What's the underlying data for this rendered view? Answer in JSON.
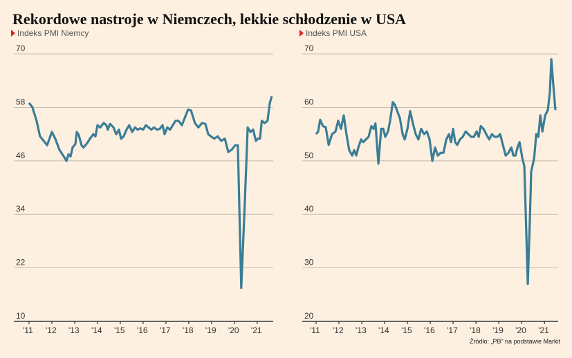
{
  "title": "Rekordowe nastroje w Niemczech, lekkie schłodzenie w USA",
  "source": "Źródło: „PB” na podstawie Markit",
  "chart_data": [
    {
      "type": "line",
      "subtitle": "Indeks PMI Niemcy",
      "color": "#3b7d96",
      "xlim": [
        2011,
        2021.7
      ],
      "ylim": [
        10,
        70
      ],
      "yticks": [
        10,
        22,
        34,
        46,
        58,
        70
      ],
      "grid": true,
      "xticks": [
        {
          "value": 2011,
          "label": "'11"
        },
        {
          "value": 2012,
          "label": "'12"
        },
        {
          "value": 2013,
          "label": "'13"
        },
        {
          "value": 2014,
          "label": "'14"
        },
        {
          "value": 2015,
          "label": "'15"
        },
        {
          "value": 2016,
          "label": "'16"
        },
        {
          "value": 2017,
          "label": "'17"
        },
        {
          "value": 2018,
          "label": "'18"
        },
        {
          "value": 2019,
          "label": "'19"
        },
        {
          "value": 2020,
          "label": "'20"
        },
        {
          "value": 2021,
          "label": "'21"
        }
      ],
      "x": [
        2011.0,
        2011.15,
        2011.33,
        2011.48,
        2011.64,
        2011.79,
        2012.0,
        2012.15,
        2012.33,
        2012.52,
        2012.64,
        2012.73,
        2012.82,
        2012.91,
        2013.03,
        2013.09,
        2013.18,
        2013.3,
        2013.39,
        2013.55,
        2013.67,
        2013.82,
        2013.91,
        2014.0,
        2014.12,
        2014.27,
        2014.39,
        2014.45,
        2014.55,
        2014.7,
        2014.82,
        2014.94,
        2015.03,
        2015.15,
        2015.27,
        2015.39,
        2015.52,
        2015.64,
        2015.76,
        2015.88,
        2016.0,
        2016.12,
        2016.24,
        2016.36,
        2016.48,
        2016.61,
        2016.73,
        2016.85,
        2016.94,
        2017.06,
        2017.18,
        2017.3,
        2017.42,
        2017.55,
        2017.7,
        2017.85,
        2017.97,
        2018.1,
        2018.27,
        2018.42,
        2018.58,
        2018.73,
        2018.85,
        2018.97,
        2019.12,
        2019.27,
        2019.42,
        2019.58,
        2019.73,
        2019.88,
        2020.03,
        2020.15,
        2020.3,
        2020.45,
        2020.58,
        2020.7,
        2020.82,
        2020.94,
        2021.03,
        2021.12,
        2021.2,
        2021.33,
        2021.45,
        2021.55,
        2021.64
      ],
      "values": [
        59,
        58,
        55,
        51.5,
        50.5,
        49.5,
        52.5,
        51,
        48.5,
        47,
        46,
        47.5,
        47,
        49,
        49.8,
        52.5,
        51.8,
        49.5,
        49,
        50,
        51,
        52,
        51.5,
        54,
        53.5,
        54.5,
        54,
        53,
        54.3,
        53.5,
        52,
        53,
        51,
        51.5,
        53,
        54,
        52.5,
        53.5,
        53,
        53.3,
        53,
        54,
        53.5,
        53,
        53.5,
        53,
        53.2,
        54,
        52,
        53.5,
        53,
        54,
        55,
        55,
        54,
        56,
        57.5,
        57.3,
        54.5,
        53.5,
        54.5,
        54.3,
        52,
        51.5,
        51,
        51.5,
        50.5,
        51,
        48,
        48.5,
        49.5,
        49.5,
        17.5,
        36,
        53.5,
        52.5,
        53,
        50.5,
        51,
        51,
        55,
        54.5,
        55,
        59,
        60.5
      ]
    },
    {
      "type": "line",
      "subtitle": "Indeks PMI USA",
      "color": "#3b7d96",
      "xlim": [
        2011,
        2021.6
      ],
      "ylim": [
        20,
        70
      ],
      "yticks": [
        20,
        30,
        40,
        50,
        60,
        70
      ],
      "grid": true,
      "xticks": [
        {
          "value": 2011,
          "label": "'11"
        },
        {
          "value": 2012,
          "label": "'12"
        },
        {
          "value": 2013,
          "label": "'13"
        },
        {
          "value": 2014,
          "label": "'14"
        },
        {
          "value": 2015,
          "label": "'15"
        },
        {
          "value": 2016,
          "label": "'16"
        },
        {
          "value": 2017,
          "label": "'17"
        },
        {
          "value": 2018,
          "label": "'18"
        },
        {
          "value": 2019,
          "label": "'19"
        },
        {
          "value": 2020,
          "label": "'20"
        },
        {
          "value": 2021,
          "label": "'21"
        }
      ],
      "x": [
        2011.0,
        2011.09,
        2011.18,
        2011.3,
        2011.42,
        2011.55,
        2011.7,
        2011.85,
        2011.97,
        2012.09,
        2012.21,
        2012.33,
        2012.45,
        2012.58,
        2012.67,
        2012.76,
        2012.85,
        2012.97,
        2013.06,
        2013.18,
        2013.3,
        2013.42,
        2013.52,
        2013.6,
        2013.73,
        2013.85,
        2013.94,
        2014.03,
        2014.15,
        2014.24,
        2014.36,
        2014.45,
        2014.58,
        2014.67,
        2014.79,
        2014.88,
        2015.0,
        2015.12,
        2015.24,
        2015.36,
        2015.48,
        2015.6,
        2015.73,
        2015.85,
        2015.97,
        2016.09,
        2016.21,
        2016.33,
        2016.45,
        2016.58,
        2016.7,
        2016.82,
        2016.91,
        2017.0,
        2017.09,
        2017.18,
        2017.3,
        2017.42,
        2017.55,
        2017.67,
        2017.79,
        2017.91,
        2018.03,
        2018.12,
        2018.21,
        2018.33,
        2018.45,
        2018.58,
        2018.7,
        2018.82,
        2018.94,
        2019.06,
        2019.18,
        2019.3,
        2019.42,
        2019.55,
        2019.64,
        2019.73,
        2019.82,
        2019.91,
        2020.03,
        2020.12,
        2020.27,
        2020.36,
        2020.42,
        2020.55,
        2020.64,
        2020.73,
        2020.82,
        2020.91,
        2021.03,
        2021.15,
        2021.24,
        2021.3,
        2021.39,
        2021.48
      ],
      "values": [
        55,
        55.5,
        57.7,
        56.5,
        56.3,
        53,
        55,
        55.5,
        57.5,
        56,
        58.5,
        55,
        52,
        51,
        52,
        51,
        52.5,
        54,
        53.5,
        54,
        54.5,
        56.5,
        56,
        57,
        49.5,
        56,
        56,
        54.5,
        55.5,
        57.5,
        61,
        60.5,
        59,
        58,
        55,
        54,
        56,
        59.3,
        57,
        55,
        54,
        56,
        55,
        55.5,
        54,
        50,
        52.5,
        51,
        51.5,
        51.5,
        54,
        55,
        53.5,
        56,
        53.5,
        53,
        54,
        54.5,
        55.5,
        55,
        54.5,
        54.5,
        55.5,
        54.5,
        56.5,
        56,
        55,
        54,
        55,
        54.5,
        54.5,
        55,
        53,
        51,
        51.5,
        52.5,
        51,
        51,
        52.5,
        53.5,
        50.5,
        49,
        27,
        39,
        48,
        50.5,
        55,
        54.5,
        58.5,
        55.5,
        58.5,
        59.5,
        63,
        69,
        64,
        59.5
      ]
    }
  ]
}
